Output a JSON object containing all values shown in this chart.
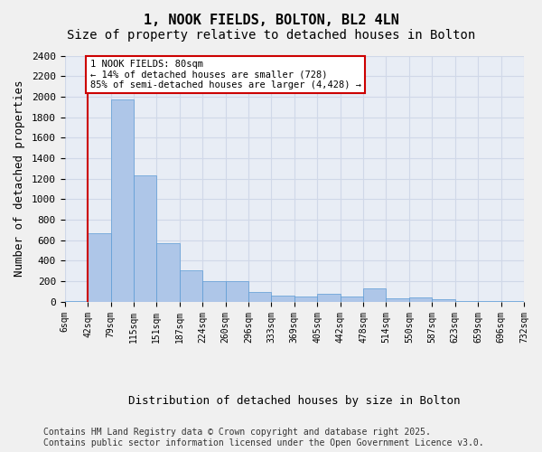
{
  "title1": "1, NOOK FIELDS, BOLTON, BL2 4LN",
  "title2": "Size of property relative to detached houses in Bolton",
  "xlabel": "Distribution of detached houses by size in Bolton",
  "ylabel": "Number of detached properties",
  "bar_values": [
    5,
    670,
    1970,
    1230,
    570,
    310,
    200,
    200,
    90,
    60,
    50,
    80,
    50,
    130,
    30,
    40,
    20,
    10,
    5,
    2
  ],
  "tick_labels": [
    "6sqm",
    "42sqm",
    "79sqm",
    "115sqm",
    "151sqm",
    "187sqm",
    "224sqm",
    "260sqm",
    "296sqm",
    "333sqm",
    "369sqm",
    "405sqm",
    "442sqm",
    "478sqm",
    "514sqm",
    "550sqm",
    "587sqm",
    "623sqm",
    "659sqm",
    "696sqm",
    "732sqm"
  ],
  "bar_color": "#aec6e8",
  "bar_edge_color": "#5b9bd5",
  "grid_color": "#d0d8e8",
  "bg_color": "#e8edf5",
  "fig_bg_color": "#f0f0f0",
  "vline_color": "#cc0000",
  "annotation_text": "1 NOOK FIELDS: 80sqm\n← 14% of detached houses are smaller (728)\n85% of semi-detached houses are larger (4,428) →",
  "annotation_border_color": "#cc0000",
  "ylim": [
    0,
    2400
  ],
  "yticks": [
    0,
    200,
    400,
    600,
    800,
    1000,
    1200,
    1400,
    1600,
    1800,
    2000,
    2200,
    2400
  ],
  "footer1": "Contains HM Land Registry data © Crown copyright and database right 2025.",
  "footer2": "Contains public sector information licensed under the Open Government Licence v3.0.",
  "title1_fontsize": 11,
  "title2_fontsize": 10,
  "tick_fontsize": 7,
  "label_fontsize": 9,
  "footer_fontsize": 7
}
